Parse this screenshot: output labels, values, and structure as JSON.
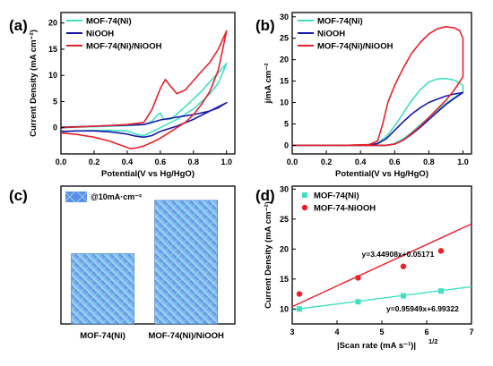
{
  "colors": {
    "cyan": "#40e0c0",
    "blue": "#1a1aa8",
    "red": "#e8212a",
    "bar_fill": "#5b95e6",
    "bar_hatch": "#6fe3ea"
  },
  "chart_data": [
    {
      "panel": "(a)",
      "type": "line",
      "xlabel": "Potential(V vs Hg/HgO)",
      "ylabel": "Current Density (mA cm⁻²)",
      "xlim": [
        0.0,
        1.05
      ],
      "ylim": [
        -5,
        22
      ],
      "xticks": [
        "0.0",
        "0.2",
        "0.4",
        "0.6",
        "0.8",
        "1.0"
      ],
      "yticks": [
        "0",
        "5",
        "10",
        "15",
        "20"
      ],
      "legend_position": "top-left",
      "series": [
        {
          "name": "MOF-74(Ni)",
          "color_key": "cyan",
          "x": [
            0.0,
            0.2,
            0.4,
            0.5,
            0.55,
            0.58,
            0.6,
            0.62,
            0.66,
            0.7,
            0.75,
            0.8,
            0.85,
            0.9,
            0.95,
            1.0,
            1.0,
            0.95,
            0.9,
            0.85,
            0.8,
            0.75,
            0.7,
            0.65,
            0.6,
            0.55,
            0.5,
            0.45,
            0.4,
            0.3,
            0.2,
            0.1,
            0.0
          ],
          "y": [
            0.0,
            0.2,
            0.4,
            0.6,
            1.2,
            2.4,
            2.8,
            1.6,
            1.6,
            2.6,
            4.0,
            5.5,
            7.0,
            8.8,
            10.5,
            12.3,
            12.3,
            8.5,
            6.5,
            5.0,
            3.6,
            2.6,
            1.6,
            0.8,
            0.0,
            -0.8,
            -1.5,
            -1.2,
            -0.6,
            -0.5,
            -0.5,
            -0.6,
            -0.8
          ]
        },
        {
          "name": "NiOOH",
          "color_key": "blue",
          "x": [
            0.0,
            0.2,
            0.4,
            0.5,
            0.55,
            0.6,
            0.7,
            0.8,
            0.9,
            0.95,
            1.0,
            1.0,
            0.9,
            0.8,
            0.7,
            0.6,
            0.55,
            0.5,
            0.45,
            0.4,
            0.3,
            0.2,
            0.1,
            0.0
          ],
          "y": [
            0.1,
            0.3,
            0.5,
            0.6,
            1.0,
            1.5,
            2.0,
            2.5,
            3.2,
            3.8,
            4.8,
            4.8,
            3.2,
            1.6,
            0.3,
            -0.7,
            -1.5,
            -1.8,
            -1.6,
            -1.2,
            -0.8,
            -0.6,
            -0.6,
            -0.7
          ]
        },
        {
          "name": "MOF-74(Ni)/NiOOH",
          "color_key": "red",
          "x": [
            0.0,
            0.2,
            0.4,
            0.5,
            0.55,
            0.6,
            0.63,
            0.66,
            0.7,
            0.75,
            0.8,
            0.85,
            0.9,
            0.95,
            1.0,
            1.0,
            0.95,
            0.9,
            0.85,
            0.8,
            0.75,
            0.7,
            0.65,
            0.6,
            0.55,
            0.5,
            0.45,
            0.42,
            0.35,
            0.3,
            0.2,
            0.1,
            0.0
          ],
          "y": [
            0.0,
            0.3,
            0.6,
            1.0,
            3.5,
            7.5,
            9.2,
            8.0,
            6.5,
            7.2,
            9.0,
            10.8,
            12.5,
            15.0,
            18.5,
            18.5,
            11.0,
            7.0,
            4.5,
            2.5,
            1.0,
            0.0,
            -1.0,
            -2.0,
            -2.8,
            -3.5,
            -3.9,
            -4.0,
            -3.2,
            -2.6,
            -1.8,
            -1.3,
            -1.0
          ]
        }
      ]
    },
    {
      "panel": "(b)",
      "type": "line",
      "xlabel": "Potential(V vs Hg/HgO)",
      "ylabel": "j/mA cm⁻²",
      "xlim": [
        0.0,
        1.05
      ],
      "ylim": [
        -2,
        31
      ],
      "xticks": [
        "0.0",
        "0.2",
        "0.4",
        "0.6",
        "0.8",
        "1.0"
      ],
      "yticks": [
        "0",
        "5",
        "10",
        "15",
        "20",
        "25",
        "30"
      ],
      "legend_position": "top-left",
      "series": [
        {
          "name": "MOF-74(Ni)",
          "color_key": "cyan",
          "x": [
            0.0,
            0.3,
            0.45,
            0.5,
            0.55,
            0.6,
            0.65,
            0.7,
            0.75,
            0.8,
            0.85,
            0.9,
            0.95,
            1.0,
            1.0,
            0.95,
            0.9,
            0.85,
            0.8,
            0.75,
            0.7,
            0.65,
            0.6,
            0.55,
            0.5,
            0.4,
            0.2,
            0.0
          ],
          "y": [
            0.0,
            0.0,
            0.1,
            0.5,
            2.0,
            4.5,
            7.5,
            10.5,
            13.0,
            14.8,
            15.5,
            15.6,
            15.2,
            14.0,
            12.5,
            11.2,
            9.8,
            8.2,
            6.5,
            4.8,
            3.0,
            1.5,
            0.4,
            0.0,
            0.0,
            0.0,
            0.0,
            0.0
          ]
        },
        {
          "name": "NiOOH",
          "color_key": "blue",
          "x": [
            0.0,
            0.3,
            0.45,
            0.5,
            0.55,
            0.6,
            0.65,
            0.7,
            0.75,
            0.8,
            0.85,
            0.9,
            0.95,
            1.0,
            1.0,
            0.95,
            0.9,
            0.85,
            0.8,
            0.75,
            0.7,
            0.65,
            0.6,
            0.55,
            0.5,
            0.4,
            0.2,
            0.0
          ],
          "y": [
            0.0,
            0.0,
            0.1,
            0.4,
            1.5,
            3.5,
            5.5,
            7.3,
            8.8,
            10.0,
            10.8,
            11.5,
            12.0,
            12.3,
            12.3,
            11.0,
            9.5,
            7.8,
            6.0,
            4.2,
            2.6,
            1.2,
            0.3,
            0.0,
            0.0,
            0.0,
            0.0,
            0.0
          ]
        },
        {
          "name": "MOF-74(Ni)/NiOOH",
          "color_key": "red",
          "x": [
            0.0,
            0.3,
            0.45,
            0.5,
            0.53,
            0.56,
            0.6,
            0.65,
            0.7,
            0.75,
            0.8,
            0.85,
            0.9,
            0.95,
            0.98,
            1.0,
            1.0,
            0.95,
            0.9,
            0.85,
            0.8,
            0.75,
            0.7,
            0.65,
            0.6,
            0.55,
            0.5,
            0.4,
            0.2,
            0.0
          ],
          "y": [
            0.0,
            0.0,
            0.2,
            1.0,
            5.0,
            10.0,
            14.0,
            18.0,
            21.5,
            24.0,
            26.0,
            27.2,
            27.7,
            27.4,
            26.8,
            25.0,
            16.0,
            13.0,
            10.5,
            8.5,
            6.5,
            4.5,
            2.8,
            1.2,
            0.3,
            0.0,
            0.0,
            0.0,
            0.0,
            0.0
          ]
        }
      ]
    },
    {
      "panel": "(c)",
      "type": "bar",
      "categories": [
        "MOF-74(Ni)",
        "MOF-74(Ni)/NiOOH"
      ],
      "values": [
        15.8,
        27.8
      ],
      "legend": "@10mA·cm⁻²",
      "legend_position": "top-left",
      "ylim": [
        0,
        31
      ]
    },
    {
      "panel": "(d)",
      "type": "scatter",
      "xlabel": "|Scan rate (mA s⁻¹)|",
      "xlabel_sup": "1/2",
      "ylabel": "Current Density (mA cm⁻²)",
      "xlim": [
        3,
        7
      ],
      "ylim": [
        7.5,
        30.5
      ],
      "xticks": [
        "3",
        "4",
        "5",
        "6",
        "7"
      ],
      "yticks": [
        "10",
        "15",
        "20",
        "25",
        "30"
      ],
      "legend_position": "top-left",
      "series": [
        {
          "name": "MOF-74(Ni)",
          "color_key": "cyan",
          "marker": "square",
          "x": [
            3.16,
            4.47,
            5.48,
            6.32
          ],
          "y": [
            10.0,
            11.2,
            12.2,
            13.0
          ],
          "fit": {
            "slope": 0.95949,
            "intercept": 6.99322,
            "label": "y=0.95949x+6.99322"
          }
        },
        {
          "name": "MOF-74-NiOOH",
          "color_key": "red",
          "marker": "circle",
          "x": [
            3.16,
            4.47,
            5.48,
            6.32
          ],
          "y": [
            12.5,
            15.2,
            17.1,
            19.7
          ],
          "fit": {
            "slope": 3.44908,
            "intercept": 0.05171,
            "label": "y=3.44908x+0.05171"
          }
        }
      ]
    }
  ]
}
